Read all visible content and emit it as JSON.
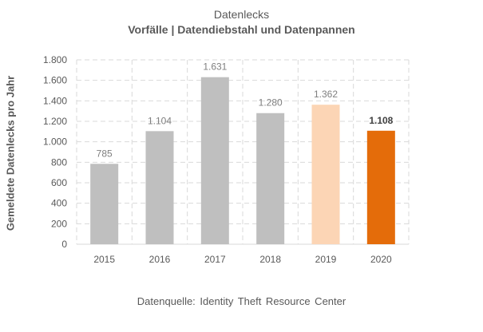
{
  "chart_data": {
    "type": "bar",
    "title": "Datenlecks",
    "subtitle": "Vorfälle | Datendiebstahl und Datenpannen",
    "ylabel": "Gemeldete Datenlecks pro Jahr",
    "categories": [
      "2015",
      "2016",
      "2017",
      "2018",
      "2019",
      "2020"
    ],
    "values": [
      785,
      1104,
      1631,
      1280,
      1362,
      1108
    ],
    "data_labels": [
      "785",
      "1.104",
      "1.631",
      "1.280",
      "1.362",
      "1.108"
    ],
    "yticks": [
      0,
      200,
      400,
      600,
      800,
      1000,
      1200,
      1400,
      1600,
      1800
    ],
    "ytick_labels": [
      "0",
      "200",
      "400",
      "600",
      "800",
      "1.000",
      "1.200",
      "1.400",
      "1.600",
      "1.800"
    ],
    "ylim": [
      0,
      1800
    ],
    "grid": true,
    "bar_colors": [
      "#bfbfbf",
      "#bfbfbf",
      "#bfbfbf",
      "#bfbfbf",
      "#fcd5b5",
      "#e46c0a"
    ],
    "highlight_bold_label": "2020"
  },
  "source": "Datenquelle: Identity Theft Resource Center"
}
